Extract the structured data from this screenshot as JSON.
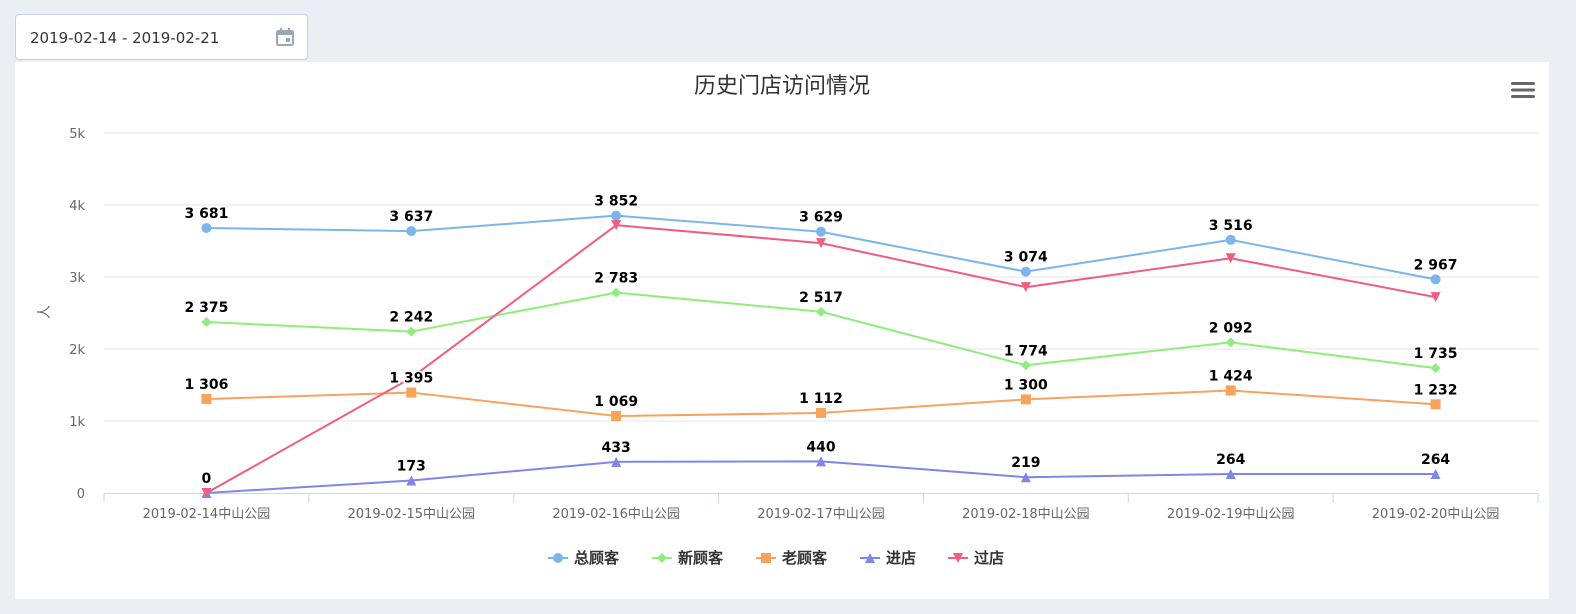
{
  "date_range": {
    "value": "2019-02-14 - 2019-02-21",
    "icon": "calendar-icon"
  },
  "menu": {
    "icon": "hamburger-menu-icon"
  },
  "chart_data": {
    "type": "line",
    "title": "历史门店访问情况",
    "ylabel": "人",
    "xlabel": "",
    "ylim": [
      0,
      5000
    ],
    "yticks": [
      "0",
      "1k",
      "2k",
      "3k",
      "4k",
      "5k"
    ],
    "grid": true,
    "legend_position": "bottom-center",
    "categories": [
      "2019-02-14中山公园",
      "2019-02-15中山公园",
      "2019-02-16中山公园",
      "2019-02-17中山公园",
      "2019-02-18中山公园",
      "2019-02-19中山公园",
      "2019-02-20中山公园"
    ],
    "series": [
      {
        "name": "总顾客",
        "color": "#7cb5ec",
        "marker": "circle",
        "values": [
          3681,
          3637,
          3852,
          3629,
          3074,
          3516,
          2967
        ],
        "labels": [
          "3 681",
          "3 637",
          "3 852",
          "3 629",
          "3 074",
          "3 516",
          "2 967"
        ]
      },
      {
        "name": "新顾客",
        "color": "#90ed7d",
        "marker": "diamond",
        "values": [
          2375,
          2242,
          2783,
          2517,
          1774,
          2092,
          1735
        ],
        "labels": [
          "2 375",
          "2 242",
          "2 783",
          "2 517",
          "1 774",
          "2 092",
          "1 735"
        ]
      },
      {
        "name": "老顾客",
        "color": "#f7a35c",
        "marker": "square",
        "values": [
          1306,
          1395,
          1069,
          1112,
          1300,
          1424,
          1232
        ],
        "labels": [
          "1 306",
          "1 395",
          "1 069",
          "1 112",
          "1 300",
          "1 424",
          "1 232"
        ]
      },
      {
        "name": "进店",
        "color": "#8085e9",
        "marker": "triangle",
        "values": [
          0,
          173,
          433,
          440,
          219,
          264,
          264
        ],
        "labels": [
          "0",
          "173",
          "433",
          "440",
          "219",
          "264",
          "264"
        ]
      },
      {
        "name": "过店",
        "color": "#f15c80",
        "marker": "triangle-down",
        "values": [
          0,
          1600,
          3720,
          3470,
          2860,
          3260,
          2720
        ],
        "labels": [
          "",
          "",
          "",
          "",
          "",
          "",
          ""
        ]
      }
    ]
  }
}
